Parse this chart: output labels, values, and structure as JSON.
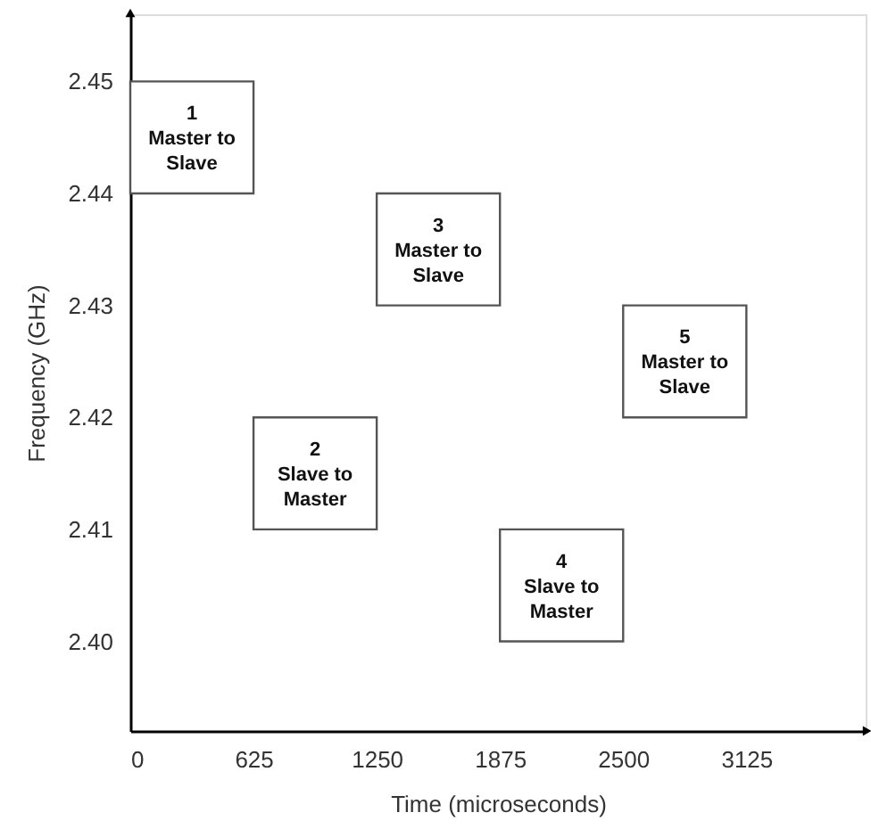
{
  "chart_data": {
    "type": "bar",
    "xlabel": "Time (microseconds)",
    "ylabel": "Frequency (GHz)",
    "x": [
      312.5,
      937.5,
      1562.5,
      2187.5,
      2812.5
    ],
    "base": [
      2.44,
      2.41,
      2.43,
      2.4,
      2.42
    ],
    "values": [
      0.01,
      0.01,
      0.01,
      0.01,
      0.01
    ],
    "color": "#ffffff",
    "xlim": [
      0,
      3730
    ],
    "xticks": [
      0,
      625,
      1250,
      1875,
      2500,
      3125
    ],
    "ylim": [
      2.392,
      2.456
    ],
    "yticks": [
      {
        "value": 2.4,
        "label": "2.40"
      },
      2.41,
      2.42,
      2.43,
      2.44,
      2.45
    ],
    "annotations": [
      "1\nMaster to\nSlave",
      "2\nSlave to\nMaster",
      "3\nMaster to\nSlave",
      "4\nSlave to\nMaster",
      "5\nMaster to\nSlave"
    ],
    "grid": false
  }
}
